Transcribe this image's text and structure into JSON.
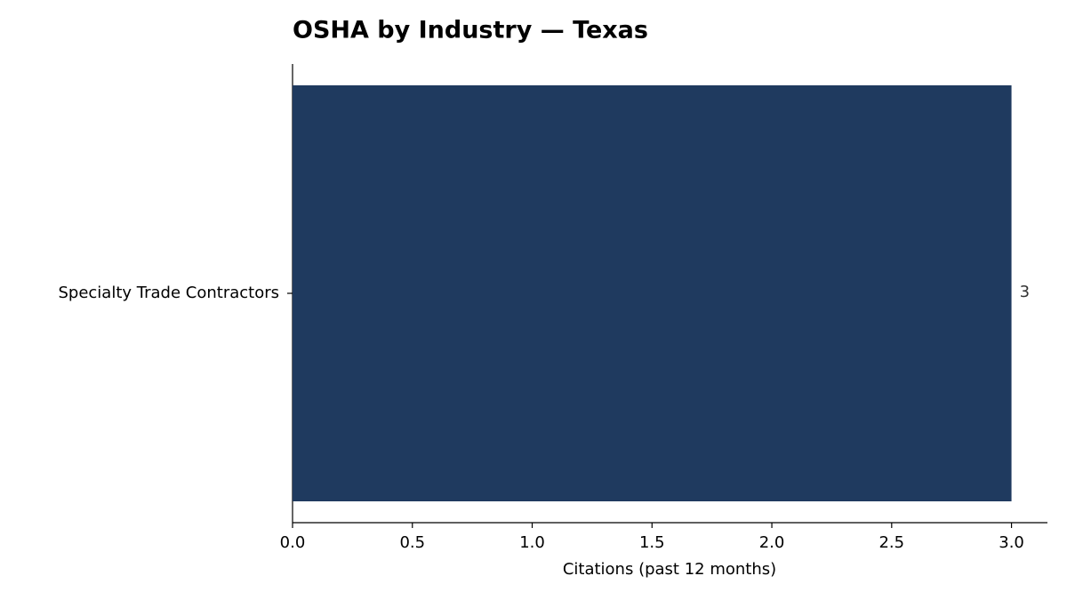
{
  "chart_data": {
    "type": "bar",
    "orientation": "horizontal",
    "title": "OSHA by Industry — Texas",
    "x_label": "Citations (past 12 months)",
    "categories": [
      "Specialty Trade Contractors"
    ],
    "values": [
      3
    ],
    "color": "#1f3a5f",
    "xlim": [
      0,
      3.15
    ],
    "xticks": [
      {
        "value": 0,
        "label": "0.0"
      },
      {
        "value": 0.5,
        "label": "0.5"
      },
      {
        "value": 1,
        "label": "1.0"
      },
      {
        "value": 1.5,
        "label": "1.5"
      },
      {
        "value": 2,
        "label": "2.0"
      },
      {
        "value": 2.5,
        "label": "2.5"
      },
      {
        "value": 3,
        "label": "3.0"
      }
    ],
    "grid": false,
    "data_labels": true
  }
}
